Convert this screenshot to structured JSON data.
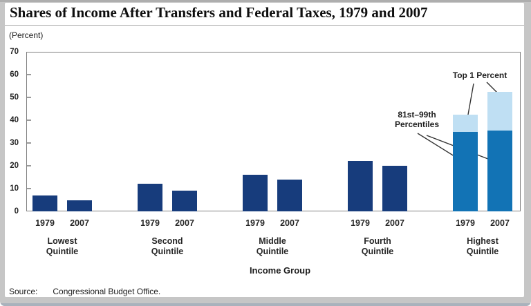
{
  "header": {
    "title": "Shares of Income After Transfers and Federal Taxes, 1979 and 2007",
    "units_label": "(Percent)"
  },
  "chart_data": {
    "type": "bar",
    "stacked": "highest quintile only",
    "title": "Shares of Income After Transfers and Federal Taxes, 1979 and 2007",
    "xlabel": "Income Group",
    "ylabel": "(Percent)",
    "ylim": [
      0,
      70
    ],
    "yticks": [
      0,
      10,
      20,
      30,
      40,
      50,
      60,
      70
    ],
    "grid": false,
    "legend_position": "annotated directly on chart",
    "year_labels": [
      "1979",
      "2007"
    ],
    "categories": [
      "Lowest Quintile",
      "Second Quintile",
      "Middle Quintile",
      "Fourth Quintile",
      "Highest Quintile"
    ],
    "groups": [
      {
        "label_lines": "Lowest\nQuintile",
        "bars": [
          {
            "year": "1979",
            "segments": [
              {
                "series": "quintile total",
                "value": 7
              }
            ]
          },
          {
            "year": "2007",
            "segments": [
              {
                "series": "quintile total",
                "value": 5
              }
            ]
          }
        ]
      },
      {
        "label_lines": "Second\nQuintile",
        "bars": [
          {
            "year": "1979",
            "segments": [
              {
                "series": "quintile total",
                "value": 12
              }
            ]
          },
          {
            "year": "2007",
            "segments": [
              {
                "series": "quintile total",
                "value": 9
              }
            ]
          }
        ]
      },
      {
        "label_lines": "Middle\nQuintile",
        "bars": [
          {
            "year": "1979",
            "segments": [
              {
                "series": "quintile total",
                "value": 16
              }
            ]
          },
          {
            "year": "2007",
            "segments": [
              {
                "series": "quintile total",
                "value": 14
              }
            ]
          }
        ]
      },
      {
        "label_lines": "Fourth\nQuintile",
        "bars": [
          {
            "year": "1979",
            "segments": [
              {
                "series": "quintile total",
                "value": 22
              }
            ]
          },
          {
            "year": "2007",
            "segments": [
              {
                "series": "quintile total",
                "value": 20
              }
            ]
          }
        ]
      },
      {
        "label_lines": "Highest\nQuintile",
        "bars": [
          {
            "year": "1979",
            "segments": [
              {
                "series": "81st-99th percentiles",
                "value": 35
              },
              {
                "series": "top 1 percent",
                "value": 7.5
              }
            ]
          },
          {
            "year": "2007",
            "segments": [
              {
                "series": "81st-99th percentiles",
                "value": 35.5
              },
              {
                "series": "top 1 percent",
                "value": 17
              }
            ]
          }
        ]
      }
    ],
    "series_colors": {
      "quintile total": "#173c7c",
      "81st-99th percentiles": "#1273b5",
      "top 1 percent": "#bfdff3"
    },
    "annotations": [
      {
        "id": "top1",
        "text": "Top 1 Percent",
        "points_to": "light segments of Highest Quintile 1979 and 2007 bars"
      },
      {
        "id": "p81_99",
        "text": "81st–99th\nPercentiles",
        "points_to": "medium-blue segments of Highest Quintile 1979 and 2007 bars"
      }
    ]
  },
  "footer": {
    "source_label": "Source:",
    "source_text": "Congressional Budget Office."
  }
}
